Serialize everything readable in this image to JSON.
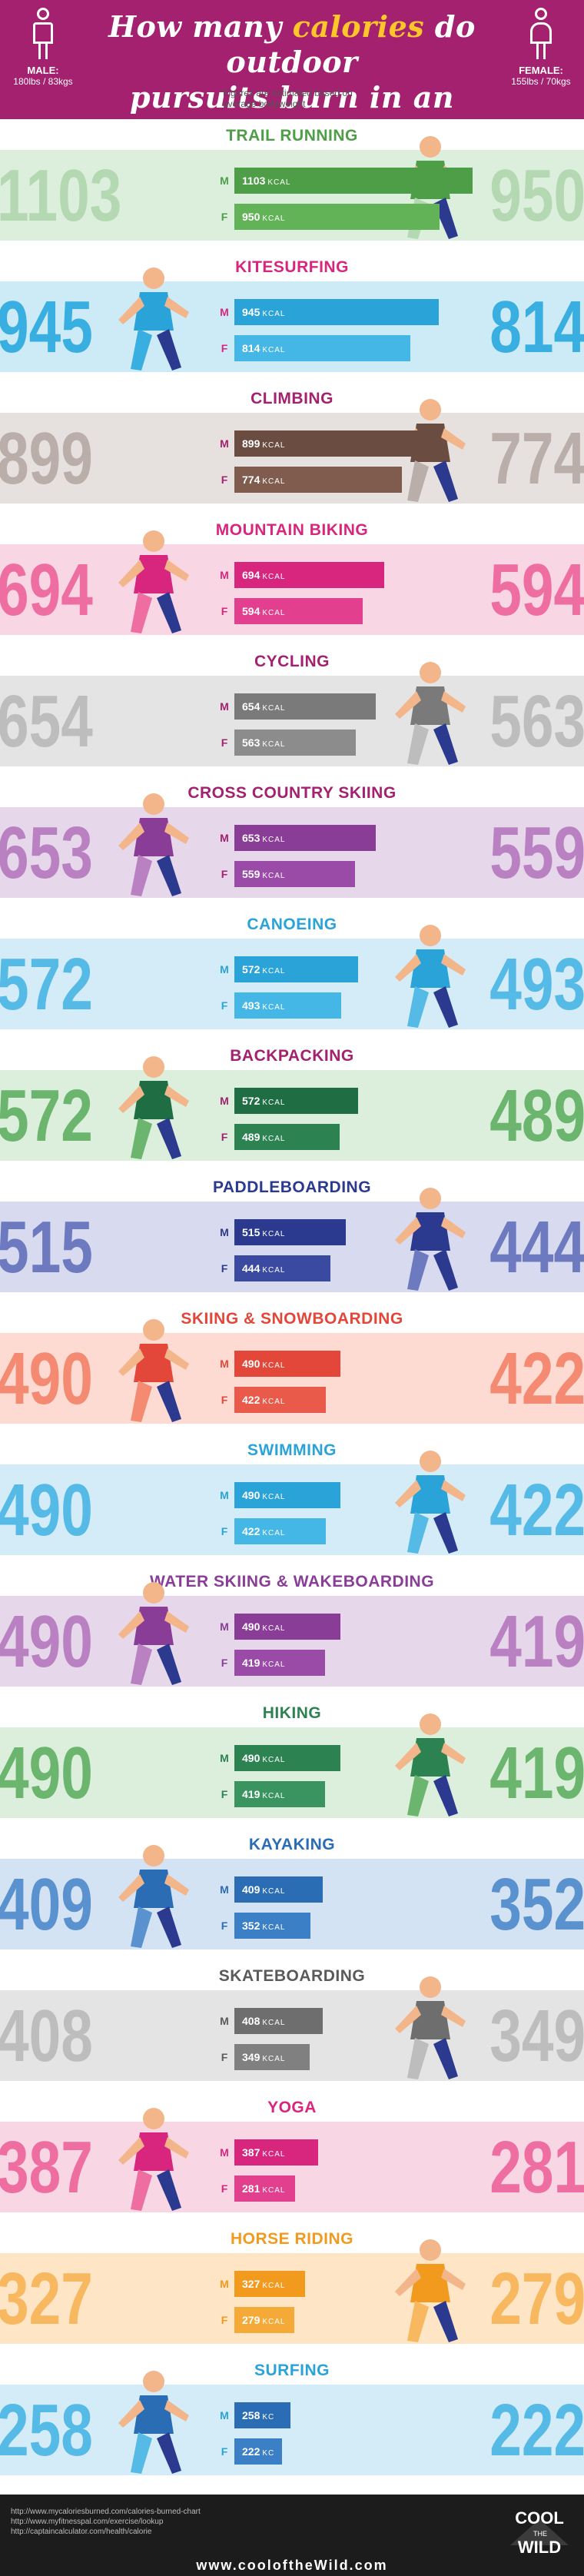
{
  "header": {
    "title_line1_a": "How many ",
    "title_line1_b": "calories",
    "title_line1_c": " do outdoor",
    "title_line2": "pursuits burn in an hour?",
    "male_label": "MALE:",
    "male_sub": "180lbs / 83kgs",
    "female_label": "FEMALE:",
    "female_sub": "155lbs / 70kgs",
    "note": "Figures are estimated based on average bodyweight"
  },
  "labels": {
    "m": "M",
    "f": "F",
    "unit": "KCAL",
    "unit_short": "KC"
  },
  "colors": {
    "header": "#a3216f",
    "accent": "#ffc629",
    "footer": "#1c1c1c"
  },
  "chart_data": {
    "type": "bar",
    "categories": [
      "TRAIL RUNNING",
      "KITESURFING",
      "CLIMBING",
      "MOUNTAIN BIKING",
      "CYCLING",
      "CROSS COUNTRY SKIING",
      "CANOEING",
      "BACKPACKING",
      "PADDLEBOARDING",
      "SKIING & SNOWBOARDING",
      "SWIMMING",
      "WATER SKIING & WAKEBOARDING",
      "HIKING",
      "KAYAKING",
      "SKATEBOARDING",
      "YOGA",
      "HORSE RIDING",
      "SURFING"
    ],
    "series": [
      {
        "name": "M",
        "values": [
          1103,
          945,
          899,
          694,
          654,
          653,
          572,
          572,
          515,
          490,
          490,
          490,
          490,
          409,
          408,
          387,
          327,
          258
        ]
      },
      {
        "name": "F",
        "values": [
          950,
          814,
          774,
          594,
          563,
          559,
          493,
          489,
          444,
          422,
          422,
          419,
          419,
          352,
          349,
          281,
          279,
          222
        ]
      }
    ],
    "ylim": [
      0,
      1103
    ]
  },
  "sections": [
    {
      "name": "TRAIL RUNNING",
      "m": "1103",
      "f": "950",
      "title_color": "#4e9e48",
      "band": "#dcefdc",
      "num_color": "#b4d8b1",
      "bar_m": "#4e9e48",
      "bar_f": "#62b357",
      "unit": "KCAL",
      "icon": "runner-icon"
    },
    {
      "name": "KITESURFING",
      "m": "945",
      "f": "814",
      "title_color": "#d8267f",
      "band": "#ccebf7",
      "num_color": "#39aee0",
      "bar_m": "#2aa3d9",
      "bar_f": "#45b7e6",
      "unit": "KCAL",
      "icon": "kitesurfer-icon"
    },
    {
      "name": "CLIMBING",
      "m": "899",
      "f": "774",
      "title_color": "#a3216f",
      "band": "#e6e1df",
      "num_color": "#b9aea9",
      "bar_m": "#6b4c40",
      "bar_f": "#7f5c4e",
      "unit": "KCAL",
      "icon": "climber-icon"
    },
    {
      "name": "MOUNTAIN BIKING",
      "m": "694",
      "f": "594",
      "title_color": "#d8267f",
      "band": "#f9d6e3",
      "num_color": "#ee6ea2",
      "bar_m": "#d8267f",
      "bar_f": "#e23f8e",
      "unit": "KCAL",
      "icon": "mountain-bike-icon"
    },
    {
      "name": "CYCLING",
      "m": "654",
      "f": "563",
      "title_color": "#a3216f",
      "band": "#e4e4e4",
      "num_color": "#bdbdbd",
      "bar_m": "#7a7a7a",
      "bar_f": "#8c8c8c",
      "unit": "KCAL",
      "icon": "cyclist-icon"
    },
    {
      "name": "CROSS COUNTRY SKIING",
      "m": "653",
      "f": "559",
      "title_color": "#a3216f",
      "band": "#e7d7ea",
      "num_color": "#b981c2",
      "bar_m": "#8a3d97",
      "bar_f": "#9a4ba7",
      "unit": "KCAL",
      "icon": "skier-icon"
    },
    {
      "name": "CANOEING",
      "m": "572",
      "f": "493",
      "title_color": "#2aa3d9",
      "band": "#d3ecf8",
      "num_color": "#56bae6",
      "bar_m": "#2aa3d9",
      "bar_f": "#45b7e6",
      "unit": "KCAL",
      "icon": "canoe-icon"
    },
    {
      "name": "BACKPACKING",
      "m": "572",
      "f": "489",
      "title_color": "#a3216f",
      "band": "#dcefdc",
      "num_color": "#6bb56e",
      "bar_m": "#1f6e43",
      "bar_f": "#2d8251",
      "unit": "KCAL",
      "icon": "backpacker-icon"
    },
    {
      "name": "PADDLEBOARDING",
      "m": "515",
      "f": "444",
      "title_color": "#2b3a8f",
      "band": "#d8dbef",
      "num_color": "#6e7ac0",
      "bar_m": "#2b3a8f",
      "bar_f": "#3a4aa0",
      "unit": "KCAL",
      "icon": "paddleboard-icon"
    },
    {
      "name": "SKIING & SNOWBOARDING",
      "m": "490",
      "f": "422",
      "title_color": "#e2473a",
      "band": "#fddbd2",
      "num_color": "#f48a72",
      "bar_m": "#e2473a",
      "bar_f": "#ea5a4a",
      "unit": "KCAL",
      "icon": "snowboarder-icon"
    },
    {
      "name": "SWIMMING",
      "m": "490",
      "f": "422",
      "title_color": "#2aa3d9",
      "band": "#d3ecf8",
      "num_color": "#56bae6",
      "bar_m": "#2aa3d9",
      "bar_f": "#45b7e6",
      "unit": "KCAL",
      "icon": "swimmer-icon"
    },
    {
      "name": "WATER SKIING & WAKEBOARDING",
      "m": "490",
      "f": "419",
      "title_color": "#8a3d97",
      "band": "#e7d7ea",
      "num_color": "#b981c2",
      "bar_m": "#8a3d97",
      "bar_f": "#9a4ba7",
      "unit": "KCAL",
      "icon": "wakeboarder-icon"
    },
    {
      "name": "HIKING",
      "m": "490",
      "f": "419",
      "title_color": "#2d8251",
      "band": "#dcefdc",
      "num_color": "#6bb56e",
      "bar_m": "#2d8251",
      "bar_f": "#3a9460",
      "unit": "KCAL",
      "icon": "hiker-icon"
    },
    {
      "name": "KAYAKING",
      "m": "409",
      "f": "352",
      "title_color": "#2a6db5",
      "band": "#d3e3f4",
      "num_color": "#5a91cf",
      "bar_m": "#2a6db5",
      "bar_f": "#3b7fc6",
      "unit": "KCAL",
      "icon": "kayaker-icon"
    },
    {
      "name": "SKATEBOARDING",
      "m": "408",
      "f": "349",
      "title_color": "#5a5a5a",
      "band": "#e4e4e4",
      "num_color": "#bdbdbd",
      "bar_m": "#6e6e6e",
      "bar_f": "#808080",
      "unit": "KCAL",
      "icon": "skateboarder-icon"
    },
    {
      "name": "YOGA",
      "m": "387",
      "f": "281",
      "title_color": "#d8267f",
      "band": "#f9d6e3",
      "num_color": "#ee6ea2",
      "bar_m": "#d8267f",
      "bar_f": "#e23f8e",
      "unit": "KCAL",
      "icon": "yoga-icon"
    },
    {
      "name": "HORSE RIDING",
      "m": "327",
      "f": "279",
      "title_color": "#f29a1d",
      "band": "#fde5c6",
      "num_color": "#f7b860",
      "bar_m": "#f29a1d",
      "bar_f": "#f5aa38",
      "unit": "KCAL",
      "icon": "horse-rider-icon"
    },
    {
      "name": "SURFING",
      "m": "258",
      "f": "222",
      "title_color": "#2aa3d9",
      "band": "#d3ecf8",
      "num_color": "#56bae6",
      "bar_m": "#2a6db5",
      "bar_f": "#3b7fc6",
      "unit": "KC",
      "icon": "surfer-icon"
    }
  ],
  "footer": {
    "sources": [
      "http://www.mycaloriesburned.com/calories-burned-chart",
      "http://www.myfitnesspal.com/exercise/lookup",
      "http://captaincalculator.com/health/calorie"
    ],
    "site": "www.cooloftheWild.com",
    "logo_line1": "COOL",
    "logo_the": "THE",
    "logo_line2": "WILD"
  }
}
